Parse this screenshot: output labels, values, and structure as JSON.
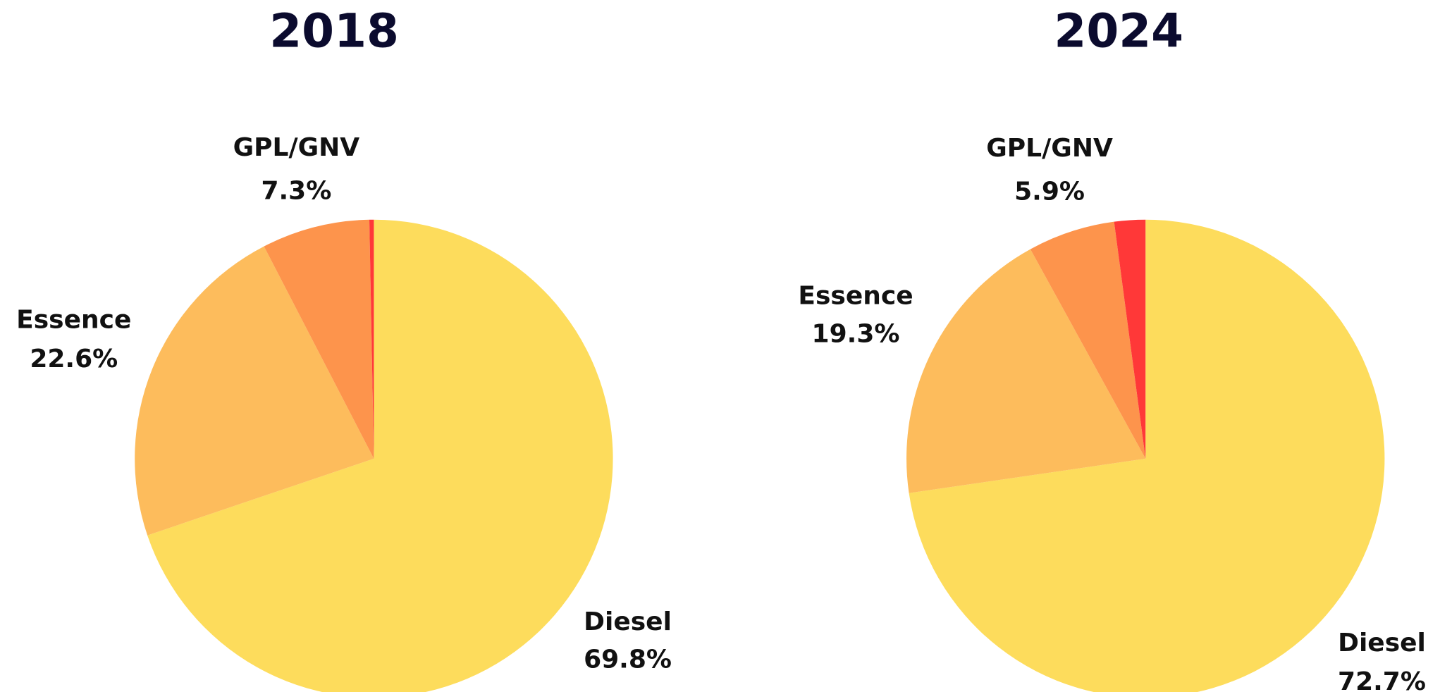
{
  "chart_data": [
    {
      "type": "pie",
      "title": "2018",
      "categories": [
        "Diesel",
        "Essence",
        "GPL/GNV",
        null
      ],
      "values": [
        69.8,
        22.6,
        7.3,
        0.3
      ],
      "value_labels": [
        "69.8%",
        "22.6%",
        "7.3%",
        null
      ],
      "colors": [
        "#fddc5c",
        "#fdbc5c",
        "#fd944c",
        "#ff3838"
      ]
    },
    {
      "type": "pie",
      "title": "2024",
      "categories": [
        "Diesel",
        "Essence",
        "GPL/GNV",
        null
      ],
      "values": [
        72.7,
        19.3,
        5.9,
        2.1
      ],
      "value_labels": [
        "72.7%",
        "19.3%",
        "5.9%",
        null
      ],
      "colors": [
        "#fddc5c",
        "#fdbc5c",
        "#fd944c",
        "#ff3838"
      ]
    }
  ]
}
